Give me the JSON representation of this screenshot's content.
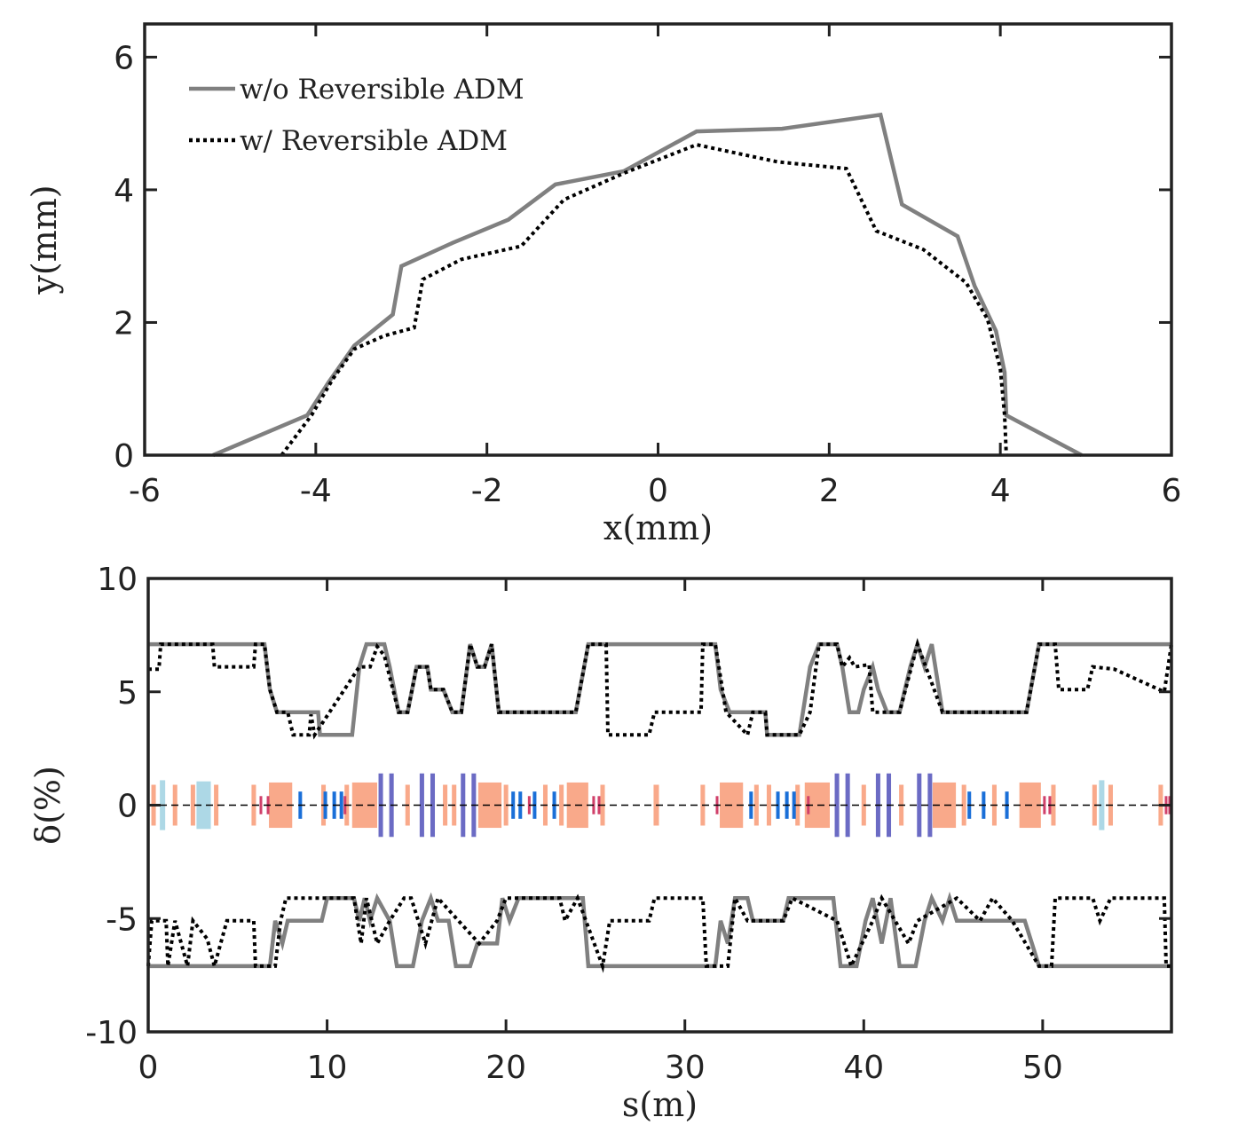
{
  "chart_data": [
    {
      "type": "line",
      "xlabel": "x(mm)",
      "ylabel": "y(mm)",
      "xlim": [
        -6,
        6
      ],
      "xticks": [
        -6,
        -4,
        -2,
        0,
        2,
        4,
        6
      ],
      "ylim": [
        0,
        6.5
      ],
      "yticks": [
        0,
        2,
        4,
        6
      ],
      "legend": "upper left",
      "series": [
        {
          "name": "w/o Reversible ADM",
          "color": "#808080",
          "style": "solid",
          "x": [
            -5.2,
            -4.1,
            -3.85,
            -3.55,
            -3.1,
            -3.0,
            -2.4,
            -1.75,
            -1.2,
            -0.4,
            0.45,
            1.45,
            2.6,
            2.85,
            3.5,
            3.7,
            3.95,
            4.05,
            4.07,
            4.95
          ],
          "values": [
            0,
            0.6,
            1.1,
            1.65,
            2.12,
            2.85,
            3.2,
            3.55,
            4.08,
            4.28,
            4.88,
            4.92,
            5.13,
            3.78,
            3.3,
            2.55,
            1.87,
            1.25,
            0.6,
            0
          ]
        },
        {
          "name": "w/ Reversible ADM",
          "color": "#000000",
          "style": "dotted",
          "x": [
            -4.4,
            -4.05,
            -3.8,
            -3.55,
            -3.2,
            -2.85,
            -2.75,
            -2.3,
            -1.6,
            -1.1,
            -0.4,
            0.45,
            1.4,
            2.2,
            2.55,
            3.1,
            3.6,
            3.85,
            4.0,
            4.05,
            4.07
          ],
          "values": [
            0,
            0.6,
            1.15,
            1.6,
            1.8,
            1.92,
            2.65,
            2.95,
            3.15,
            3.85,
            4.25,
            4.68,
            4.42,
            4.32,
            3.38,
            3.1,
            2.6,
            2.05,
            1.3,
            0.6,
            0
          ]
        }
      ]
    },
    {
      "type": "line",
      "xlabel": "s(m)",
      "ylabel": "δ(%)",
      "xlim": [
        0,
        57.2
      ],
      "xticks": [
        0,
        10,
        20,
        30,
        40,
        50
      ],
      "ylim": [
        -10,
        10
      ],
      "yticks": [
        -10,
        -5,
        0,
        5,
        10
      ],
      "series": [
        {
          "color": "#808080",
          "style": "solid",
          "x": [
            0,
            6.5,
            6.8,
            7.2,
            9.5,
            9.6,
            11.4,
            11.8,
            12.2,
            13.2,
            13.5,
            14.0,
            14.5,
            15.0,
            15.6,
            15.8,
            16.5,
            17.0,
            17.5,
            18.0,
            18.4,
            18.8,
            19.2,
            19.6,
            23.9,
            24.6,
            31.7,
            32.0,
            32.5,
            34.5,
            34.6,
            36.4,
            37.0,
            37.5,
            38.5,
            38.8,
            39.2,
            39.7,
            40.0,
            40.5,
            40.8,
            41.3,
            42.0,
            42.6,
            43.0,
            43.4,
            43.8,
            44.4,
            49.1,
            49.8,
            57.2
          ],
          "values": [
            7.1,
            7.1,
            5.1,
            4.1,
            4.1,
            3.1,
            3.1,
            6.1,
            7.1,
            7.1,
            6.1,
            4.1,
            4.1,
            6.1,
            6.1,
            5.1,
            5.1,
            4.1,
            4.1,
            7.1,
            6.1,
            6.1,
            7.1,
            4.1,
            4.1,
            7.1,
            7.1,
            5.1,
            4.1,
            4.1,
            3.1,
            3.1,
            6.1,
            7.1,
            7.1,
            6.1,
            4.1,
            4.1,
            5.1,
            6.1,
            5.1,
            4.1,
            4.1,
            6.1,
            7.1,
            6.1,
            7.1,
            4.1,
            4.1,
            7.1,
            7.1
          ]
        },
        {
          "color": "#000000",
          "style": "dotted",
          "x": [
            0,
            0.6,
            0.7,
            3.6,
            3.7,
            5.9,
            6.0,
            6.5,
            6.8,
            7.2,
            7.8,
            8.1,
            9.0,
            9.1,
            9.3,
            11.8,
            12.4,
            12.8,
            13.2,
            14.0,
            14.5,
            15.0,
            15.6,
            15.8,
            16.5,
            17.0,
            17.5,
            18.0,
            18.4,
            18.8,
            19.2,
            19.6,
            23.9,
            24.6,
            25.6,
            25.7,
            28.0,
            28.3,
            30.9,
            31.0,
            31.7,
            32.3,
            33.5,
            33.8,
            34.5,
            34.6,
            36.4,
            37.0,
            37.5,
            38.5,
            38.8,
            39.2,
            39.5,
            40.3,
            40.5,
            42.0,
            43.0,
            44.4,
            49.1,
            49.8,
            50.7,
            50.9,
            52.5,
            52.8,
            54.0,
            56.8,
            57.2
          ],
          "values": [
            6.0,
            6.0,
            7.1,
            7.1,
            6.1,
            6.1,
            7.1,
            7.1,
            5.1,
            4.1,
            4.1,
            3.1,
            3.1,
            4.0,
            3.1,
            6.1,
            6.1,
            7.0,
            6.6,
            4.1,
            4.1,
            6.1,
            6.1,
            5.1,
            5.1,
            4.1,
            4.1,
            7.1,
            6.1,
            6.1,
            7.1,
            4.1,
            4.1,
            7.1,
            7.1,
            3.1,
            3.1,
            4.1,
            4.1,
            7.1,
            7.1,
            4.1,
            3.1,
            4.1,
            4.1,
            3.1,
            3.1,
            4.1,
            7.1,
            7.1,
            6.1,
            6.5,
            6.1,
            6.2,
            4.1,
            4.1,
            7.1,
            4.1,
            4.1,
            7.1,
            7.1,
            5.1,
            5.1,
            6.1,
            6.0,
            5.0,
            7.1
          ]
        },
        {
          "color": "#808080",
          "style": "solid",
          "x": [
            0,
            6.8,
            7.1,
            7.5,
            7.8,
            9.7,
            10.0,
            11.5,
            11.8,
            12.1,
            12.4,
            12.8,
            13.5,
            13.9,
            14.8,
            15.3,
            15.8,
            16.2,
            16.8,
            17.2,
            18.0,
            18.4,
            19.5,
            19.8,
            20.2,
            20.7,
            24.3,
            24.6,
            31.7,
            32.0,
            32.4,
            32.8,
            33.5,
            33.8,
            35.5,
            35.8,
            38.3,
            38.7,
            39.6,
            40.1,
            40.5,
            41.0,
            41.5,
            42.0,
            42.9,
            43.4,
            43.8,
            44.4,
            44.8,
            45.2,
            49.0,
            49.8,
            57.2
          ],
          "values": [
            -7.1,
            -7.1,
            -5.1,
            -6.1,
            -5.1,
            -5.1,
            -4.1,
            -4.1,
            -5.1,
            -4.1,
            -5.1,
            -4.1,
            -5.1,
            -7.1,
            -7.1,
            -5.1,
            -4.1,
            -5.1,
            -5.1,
            -7.1,
            -7.1,
            -6.1,
            -6.1,
            -4.1,
            -5.1,
            -4.1,
            -4.1,
            -7.1,
            -7.1,
            -5.1,
            -6.1,
            -4.1,
            -4.1,
            -5.1,
            -5.1,
            -4.1,
            -4.1,
            -7.1,
            -7.1,
            -5.1,
            -4.1,
            -6.1,
            -4.1,
            -7.1,
            -7.1,
            -5.1,
            -4.1,
            -5.1,
            -4.1,
            -5.1,
            -5.1,
            -7.1,
            -7.1
          ]
        },
        {
          "color": "#000000",
          "style": "dotted",
          "x": [
            0,
            0.2,
            1.0,
            1.1,
            1.5,
            2.2,
            2.5,
            3.3,
            3.7,
            4.4,
            5.9,
            6.0,
            7.1,
            7.4,
            7.7,
            11.5,
            11.9,
            12.2,
            12.8,
            13.5,
            14.3,
            14.7,
            15.5,
            16.2,
            18.5,
            19.5,
            20.0,
            23.0,
            23.3,
            24.0,
            25.4,
            25.8,
            28.0,
            28.3,
            31.0,
            31.2,
            32.4,
            32.8,
            33.5,
            35.5,
            36.0,
            38.5,
            39.3,
            40.5,
            41.0,
            42.5,
            43.0,
            45.2,
            46.5,
            47.2,
            48.3,
            49.8,
            50.5,
            50.7,
            52.8,
            53.2,
            53.8,
            56.8,
            56.9,
            57.2
          ],
          "values": [
            -7.1,
            -5.1,
            -5.1,
            -7.1,
            -5.1,
            -7.1,
            -5.1,
            -5.9,
            -7.1,
            -5.1,
            -5.1,
            -7.1,
            -7.1,
            -5.1,
            -4.1,
            -4.1,
            -6.1,
            -4.1,
            -6.1,
            -5.1,
            -4.1,
            -4.1,
            -6.1,
            -4.1,
            -6.1,
            -5.1,
            -4.1,
            -4.1,
            -5.1,
            -4.1,
            -7.1,
            -5.1,
            -5.1,
            -4.1,
            -4.1,
            -7.1,
            -7.1,
            -4.1,
            -5.1,
            -5.1,
            -4.1,
            -5.1,
            -7.1,
            -5.1,
            -4.1,
            -6.1,
            -5.1,
            -4.1,
            -5.1,
            -4.1,
            -5.1,
            -7.1,
            -7.1,
            -4.1,
            -4.1,
            -5.1,
            -4.1,
            -4.1,
            -7.1,
            -7.1
          ]
        }
      ],
      "elements": [
        {
          "s": 0.8,
          "w": 0.3,
          "h": 1.1,
          "color": "#add8e6"
        },
        {
          "s": 3.1,
          "w": 0.8,
          "h": 1.05,
          "color": "#add8e6"
        },
        {
          "s": 53.3,
          "w": 0.3,
          "h": 1.1,
          "color": "#add8e6"
        },
        {
          "s": 7.4,
          "w": 1.3,
          "h": 1.0,
          "color": "#f9a98a"
        },
        {
          "s": 12.1,
          "w": 1.4,
          "h": 1.0,
          "color": "#f9a98a"
        },
        {
          "s": 19.1,
          "w": 1.3,
          "h": 1.0,
          "color": "#f9a98a"
        },
        {
          "s": 24.0,
          "w": 1.2,
          "h": 1.0,
          "color": "#f9a98a"
        },
        {
          "s": 32.6,
          "w": 1.3,
          "h": 1.0,
          "color": "#f9a98a"
        },
        {
          "s": 37.4,
          "w": 1.4,
          "h": 1.0,
          "color": "#f9a98a"
        },
        {
          "s": 44.5,
          "w": 1.3,
          "h": 1.0,
          "color": "#f9a98a"
        },
        {
          "s": 49.3,
          "w": 1.2,
          "h": 1.0,
          "color": "#f9a98a"
        },
        {
          "s": 0.3,
          "w": 0.25,
          "h": 0.9,
          "color": "#f9a98a"
        },
        {
          "s": 1.5,
          "w": 0.25,
          "h": 0.9,
          "color": "#f9a98a"
        },
        {
          "s": 2.5,
          "w": 0.25,
          "h": 0.9,
          "color": "#f9a98a"
        },
        {
          "s": 3.8,
          "w": 0.25,
          "h": 0.9,
          "color": "#f9a98a"
        },
        {
          "s": 5.9,
          "w": 0.25,
          "h": 0.9,
          "color": "#f9a98a"
        },
        {
          "s": 9.8,
          "w": 0.25,
          "h": 0.9,
          "color": "#f9a98a"
        },
        {
          "s": 11.1,
          "w": 0.25,
          "h": 0.9,
          "color": "#f9a98a"
        },
        {
          "s": 14.5,
          "w": 0.25,
          "h": 0.9,
          "color": "#f9a98a"
        },
        {
          "s": 16.6,
          "w": 0.25,
          "h": 0.9,
          "color": "#f9a98a"
        },
        {
          "s": 17.1,
          "w": 0.25,
          "h": 0.9,
          "color": "#f9a98a"
        },
        {
          "s": 20.0,
          "w": 0.25,
          "h": 0.9,
          "color": "#f9a98a"
        },
        {
          "s": 22.2,
          "w": 0.25,
          "h": 0.9,
          "color": "#f9a98a"
        },
        {
          "s": 23.1,
          "w": 0.25,
          "h": 0.9,
          "color": "#f9a98a"
        },
        {
          "s": 25.4,
          "w": 0.25,
          "h": 0.9,
          "color": "#f9a98a"
        },
        {
          "s": 28.4,
          "w": 0.3,
          "h": 0.9,
          "color": "#f9a98a"
        },
        {
          "s": 31.0,
          "w": 0.25,
          "h": 0.9,
          "color": "#f9a98a"
        },
        {
          "s": 34.0,
          "w": 0.25,
          "h": 0.9,
          "color": "#f9a98a"
        },
        {
          "s": 34.7,
          "w": 0.25,
          "h": 0.9,
          "color": "#f9a98a"
        },
        {
          "s": 36.3,
          "w": 0.25,
          "h": 0.9,
          "color": "#f9a98a"
        },
        {
          "s": 40.0,
          "w": 0.25,
          "h": 0.9,
          "color": "#f9a98a"
        },
        {
          "s": 42.1,
          "w": 0.25,
          "h": 0.9,
          "color": "#f9a98a"
        },
        {
          "s": 45.6,
          "w": 0.25,
          "h": 0.9,
          "color": "#f9a98a"
        },
        {
          "s": 47.3,
          "w": 0.25,
          "h": 0.9,
          "color": "#f9a98a"
        },
        {
          "s": 50.6,
          "w": 0.25,
          "h": 0.9,
          "color": "#f9a98a"
        },
        {
          "s": 52.9,
          "w": 0.25,
          "h": 0.9,
          "color": "#f9a98a"
        },
        {
          "s": 53.8,
          "w": 0.25,
          "h": 0.9,
          "color": "#f9a98a"
        },
        {
          "s": 56.6,
          "w": 0.25,
          "h": 0.9,
          "color": "#f9a98a"
        },
        {
          "s": 13.0,
          "w": 0.25,
          "h": 1.4,
          "color": "#6b6bc4"
        },
        {
          "s": 13.6,
          "w": 0.25,
          "h": 1.4,
          "color": "#6b6bc4"
        },
        {
          "s": 15.3,
          "w": 0.25,
          "h": 1.4,
          "color": "#6b6bc4"
        },
        {
          "s": 15.9,
          "w": 0.25,
          "h": 1.4,
          "color": "#6b6bc4"
        },
        {
          "s": 17.6,
          "w": 0.25,
          "h": 1.4,
          "color": "#6b6bc4"
        },
        {
          "s": 18.2,
          "w": 0.25,
          "h": 1.4,
          "color": "#6b6bc4"
        },
        {
          "s": 38.5,
          "w": 0.25,
          "h": 1.4,
          "color": "#6b6bc4"
        },
        {
          "s": 39.1,
          "w": 0.25,
          "h": 1.4,
          "color": "#6b6bc4"
        },
        {
          "s": 40.8,
          "w": 0.25,
          "h": 1.4,
          "color": "#6b6bc4"
        },
        {
          "s": 41.4,
          "w": 0.25,
          "h": 1.4,
          "color": "#6b6bc4"
        },
        {
          "s": 43.1,
          "w": 0.25,
          "h": 1.4,
          "color": "#6b6bc4"
        },
        {
          "s": 43.7,
          "w": 0.25,
          "h": 1.4,
          "color": "#6b6bc4"
        },
        {
          "s": 6.3,
          "w": 0.15,
          "h": 0.4,
          "color": "#d0406a"
        },
        {
          "s": 6.7,
          "w": 0.15,
          "h": 0.4,
          "color": "#d0406a"
        },
        {
          "s": 11.0,
          "w": 0.15,
          "h": 0.4,
          "color": "#d0406a"
        },
        {
          "s": 21.3,
          "w": 0.15,
          "h": 0.4,
          "color": "#d0406a"
        },
        {
          "s": 24.9,
          "w": 0.15,
          "h": 0.4,
          "color": "#d0406a"
        },
        {
          "s": 25.2,
          "w": 0.15,
          "h": 0.4,
          "color": "#d0406a"
        },
        {
          "s": 31.8,
          "w": 0.15,
          "h": 0.4,
          "color": "#d0406a"
        },
        {
          "s": 36.9,
          "w": 0.15,
          "h": 0.4,
          "color": "#d0406a"
        },
        {
          "s": 50.1,
          "w": 0.15,
          "h": 0.4,
          "color": "#d0406a"
        },
        {
          "s": 50.4,
          "w": 0.15,
          "h": 0.4,
          "color": "#d0406a"
        },
        {
          "s": 56.9,
          "w": 0.15,
          "h": 0.4,
          "color": "#d0406a"
        },
        {
          "s": 57.1,
          "w": 0.15,
          "h": 0.4,
          "color": "#d0406a"
        },
        {
          "s": 8.5,
          "w": 0.2,
          "h": 0.6,
          "color": "#1a6fd8"
        },
        {
          "s": 9.9,
          "w": 0.2,
          "h": 0.6,
          "color": "#1a6fd8"
        },
        {
          "s": 10.4,
          "w": 0.2,
          "h": 0.6,
          "color": "#1a6fd8"
        },
        {
          "s": 10.8,
          "w": 0.2,
          "h": 0.6,
          "color": "#1a6fd8"
        },
        {
          "s": 20.4,
          "w": 0.2,
          "h": 0.6,
          "color": "#1a6fd8"
        },
        {
          "s": 20.8,
          "w": 0.2,
          "h": 0.6,
          "color": "#1a6fd8"
        },
        {
          "s": 21.6,
          "w": 0.2,
          "h": 0.6,
          "color": "#1a6fd8"
        },
        {
          "s": 22.7,
          "w": 0.2,
          "h": 0.6,
          "color": "#1a6fd8"
        },
        {
          "s": 33.7,
          "w": 0.2,
          "h": 0.6,
          "color": "#1a6fd8"
        },
        {
          "s": 35.2,
          "w": 0.2,
          "h": 0.6,
          "color": "#1a6fd8"
        },
        {
          "s": 35.7,
          "w": 0.2,
          "h": 0.6,
          "color": "#1a6fd8"
        },
        {
          "s": 36.1,
          "w": 0.2,
          "h": 0.6,
          "color": "#1a6fd8"
        },
        {
          "s": 45.9,
          "w": 0.2,
          "h": 0.6,
          "color": "#1a6fd8"
        },
        {
          "s": 46.7,
          "w": 0.2,
          "h": 0.6,
          "color": "#1a6fd8"
        },
        {
          "s": 48.0,
          "w": 0.2,
          "h": 0.6,
          "color": "#1a6fd8"
        }
      ]
    }
  ]
}
